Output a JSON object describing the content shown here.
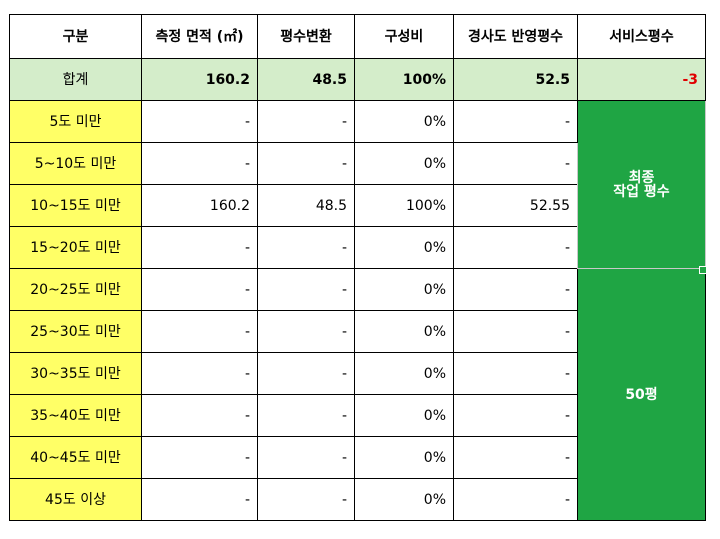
{
  "headers": [
    "구분",
    "측정 면적 (㎡)",
    "평수변환",
    "구성비",
    "경사도 반영평수",
    "서비스평수"
  ],
  "total": {
    "label": "합계",
    "area": "160.2",
    "pyeong": "48.5",
    "ratio": "100%",
    "slope_pyeong": "52.5",
    "service": "-3"
  },
  "rows": [
    {
      "grade": "5도 미만",
      "area": "-",
      "pyeong": "-",
      "ratio": "0%",
      "slope_pyeong": "-"
    },
    {
      "grade": "5~10도 미만",
      "area": "-",
      "pyeong": "-",
      "ratio": "0%",
      "slope_pyeong": "-"
    },
    {
      "grade": "10~15도 미만",
      "area": "160.2",
      "pyeong": "48.5",
      "ratio": "100%",
      "slope_pyeong": "52.55"
    },
    {
      "grade": "15~20도 미만",
      "area": "-",
      "pyeong": "-",
      "ratio": "0%",
      "slope_pyeong": "-"
    },
    {
      "grade": "20~25도 미만",
      "area": "-",
      "pyeong": "-",
      "ratio": "0%",
      "slope_pyeong": "-"
    },
    {
      "grade": "25~30도 미만",
      "area": "-",
      "pyeong": "-",
      "ratio": "0%",
      "slope_pyeong": "-"
    },
    {
      "grade": "30~35도 미만",
      "area": "-",
      "pyeong": "-",
      "ratio": "0%",
      "slope_pyeong": "-"
    },
    {
      "grade": "35~40도 미만",
      "area": "-",
      "pyeong": "-",
      "ratio": "0%",
      "slope_pyeong": "-"
    },
    {
      "grade": "40~45도 미만",
      "area": "-",
      "pyeong": "-",
      "ratio": "0%",
      "slope_pyeong": "-"
    },
    {
      "grade": "45도 이상",
      "area": "-",
      "pyeong": "-",
      "ratio": "0%",
      "slope_pyeong": "-"
    }
  ],
  "final": {
    "label_line1": "최종",
    "label_line2": "작업 평수",
    "value": "50평"
  },
  "colors": {
    "header_bg": "#ffffff",
    "total_bg": "#d4edca",
    "grade_bg": "#ffff66",
    "final_bg": "#1fa544",
    "negative_text": "#e00000"
  }
}
